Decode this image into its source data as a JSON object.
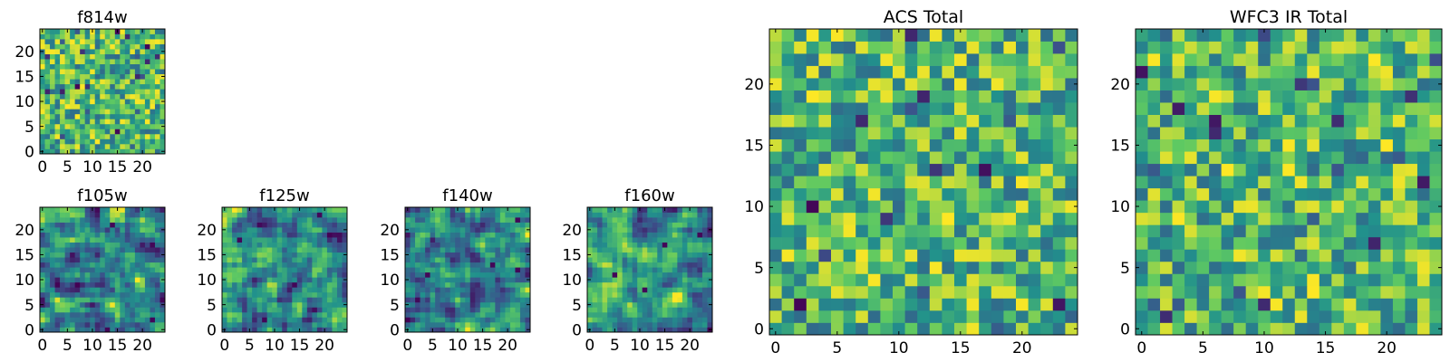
{
  "figure": {
    "background": "#ffffff",
    "colormap": "viridis",
    "colormap_colors": [
      "#440154",
      "#3b528b",
      "#21918c",
      "#5ec962",
      "#fde725"
    ]
  },
  "chart_data": [
    {
      "type": "heatmap",
      "title": "f814w",
      "grid_shape": [
        25,
        25
      ],
      "xlim": [
        -0.5,
        24.5
      ],
      "ylim": [
        -0.5,
        24.5
      ],
      "xticks": [
        0,
        5,
        10,
        15,
        20
      ],
      "yticks": [
        0,
        5,
        10,
        15,
        20
      ],
      "xtick_labels": [
        "0",
        "5",
        "10",
        "15",
        "20"
      ],
      "ytick_labels": [
        "0",
        "5",
        "10",
        "15",
        "20"
      ],
      "origin": "lower",
      "pattern": "noisy-pixels",
      "seed": 11
    },
    {
      "type": "heatmap",
      "title": "f105w",
      "grid_shape": [
        25,
        25
      ],
      "xlim": [
        -0.5,
        24.5
      ],
      "ylim": [
        -0.5,
        24.5
      ],
      "xticks": [
        0,
        5,
        10,
        15,
        20
      ],
      "yticks": [
        0,
        5,
        10,
        15,
        20
      ],
      "xtick_labels": [
        "0",
        "5",
        "10",
        "15",
        "20"
      ],
      "ytick_labels": [
        "0",
        "5",
        "10",
        "15",
        "20"
      ],
      "origin": "lower",
      "pattern": "smooth-blobs",
      "seed": 23
    },
    {
      "type": "heatmap",
      "title": "f125w",
      "grid_shape": [
        25,
        25
      ],
      "xlim": [
        -0.5,
        24.5
      ],
      "ylim": [
        -0.5,
        24.5
      ],
      "xticks": [
        0,
        5,
        10,
        15,
        20
      ],
      "yticks": [
        0,
        5,
        10,
        15,
        20
      ],
      "xtick_labels": [
        "0",
        "5",
        "10",
        "15",
        "20"
      ],
      "ytick_labels": [
        "0",
        "5",
        "10",
        "15",
        "20"
      ],
      "origin": "lower",
      "pattern": "smooth-blobs",
      "seed": 37
    },
    {
      "type": "heatmap",
      "title": "f140w",
      "grid_shape": [
        25,
        25
      ],
      "xlim": [
        -0.5,
        24.5
      ],
      "ylim": [
        -0.5,
        24.5
      ],
      "xticks": [
        0,
        5,
        10,
        15,
        20
      ],
      "yticks": [
        0,
        5,
        10,
        15,
        20
      ],
      "xtick_labels": [
        "0",
        "5",
        "10",
        "15",
        "20"
      ],
      "ytick_labels": [
        "0",
        "5",
        "10",
        "15",
        "20"
      ],
      "origin": "lower",
      "pattern": "smooth-blobs",
      "seed": 41
    },
    {
      "type": "heatmap",
      "title": "f160w",
      "grid_shape": [
        25,
        25
      ],
      "xlim": [
        -0.5,
        24.5
      ],
      "ylim": [
        -0.5,
        24.5
      ],
      "xticks": [
        0,
        5,
        10,
        15,
        20
      ],
      "yticks": [
        0,
        5,
        10,
        15,
        20
      ],
      "xtick_labels": [
        "0",
        "5",
        "10",
        "15",
        "20"
      ],
      "ytick_labels": [
        "0",
        "5",
        "10",
        "15",
        "20"
      ],
      "origin": "lower",
      "pattern": "smooth-blobs",
      "seed": 53
    },
    {
      "type": "heatmap",
      "title": "ACS Total",
      "grid_shape": [
        25,
        25
      ],
      "xlim": [
        -0.5,
        24.5
      ],
      "ylim": [
        -0.5,
        24.5
      ],
      "xticks": [
        0,
        5,
        10,
        15,
        20
      ],
      "yticks": [
        0,
        5,
        10,
        15,
        20
      ],
      "xtick_labels": [
        "0",
        "5",
        "10",
        "15",
        "20"
      ],
      "ytick_labels": [
        "0",
        "5",
        "10",
        "15",
        "20"
      ],
      "origin": "lower",
      "pattern": "noisy-pixels",
      "seed": 67
    },
    {
      "type": "heatmap",
      "title": "WFC3 IR Total",
      "grid_shape": [
        25,
        25
      ],
      "xlim": [
        -0.5,
        24.5
      ],
      "ylim": [
        -0.5,
        24.5
      ],
      "xticks": [
        0,
        5,
        10,
        15,
        20
      ],
      "yticks": [
        0,
        5,
        10,
        15,
        20
      ],
      "xtick_labels": [
        "0",
        "5",
        "10",
        "15",
        "20"
      ],
      "ytick_labels": [
        "0",
        "5",
        "10",
        "15",
        "20"
      ],
      "origin": "lower",
      "pattern": "noisy-pixels",
      "seed": 79
    }
  ]
}
